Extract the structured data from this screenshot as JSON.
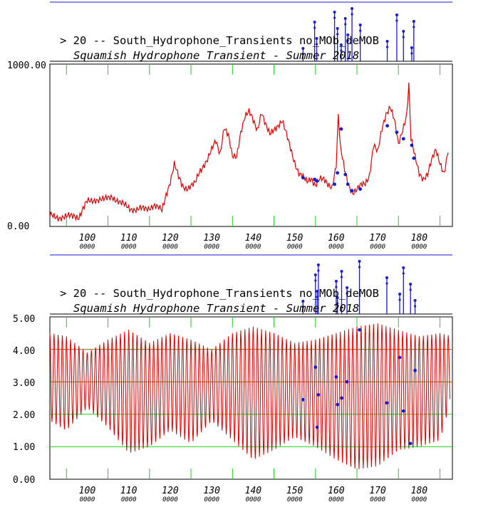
{
  "colors": {
    "axis": "#000000",
    "series": "#e00000",
    "events": "#1a1ad0",
    "grid": "#22cc22",
    "gridMajor": "#7a7a00"
  },
  "chart_data": [
    {
      "type": "line",
      "title": "> 20 -- South_Hydrophone_Transients no_MOb_deMOB",
      "subtitle": "Squamish Hydrophone Transient - Summer 2018",
      "xlim": [
        91,
        188
      ],
      "ylim": [
        0,
        1000
      ],
      "y_tick_labels": [
        "1000.00",
        "0.00"
      ],
      "x_tick_labels": [
        "100",
        "110",
        "120",
        "130",
        "140",
        "150",
        "160",
        "170",
        "180"
      ],
      "x_tick_sublabel": "0000",
      "series": [
        {
          "x": [
            91,
            93,
            95,
            97,
            98,
            100,
            102,
            104,
            106,
            108,
            110,
            112,
            114,
            116,
            118,
            119,
            120,
            121,
            122,
            123,
            124,
            126,
            127,
            128,
            129,
            130,
            131,
            132,
            133,
            134,
            135,
            136,
            137,
            138,
            139,
            140,
            141,
            142,
            143,
            144,
            145,
            146,
            147,
            148,
            149,
            150,
            151,
            152,
            153,
            154,
            155,
            156,
            157,
            158,
            159,
            160,
            160.5,
            161,
            162,
            163,
            164,
            165,
            166,
            167,
            168,
            169,
            170,
            171,
            172,
            173,
            174,
            175,
            176,
            177,
            177.5,
            178,
            179,
            180,
            181,
            182,
            183,
            184,
            185,
            186,
            187
          ],
          "y": [
            65,
            60,
            55,
            70,
            60,
            150,
            170,
            160,
            190,
            140,
            120,
            100,
            110,
            130,
            95,
            200,
            280,
            380,
            300,
            250,
            240,
            260,
            330,
            380,
            420,
            470,
            520,
            450,
            620,
            560,
            420,
            430,
            590,
            680,
            700,
            650,
            600,
            710,
            620,
            560,
            600,
            630,
            650,
            560,
            480,
            400,
            330,
            300,
            270,
            300,
            260,
            290,
            280,
            260,
            250,
            380,
            680,
            480,
            350,
            260,
            210,
            220,
            250,
            270,
            320,
            500,
            450,
            600,
            700,
            740,
            650,
            500,
            600,
            700,
            880,
            540,
            420,
            330,
            300,
            320,
            400,
            470,
            400,
            330,
            460
          ]
        }
      ],
      "events": [
        {
          "x": 152.0,
          "y": 300
        },
        {
          "x": 154.8,
          "y": 290
        },
        {
          "x": 155.3,
          "y": 280
        },
        {
          "x": 159.6,
          "y": 260
        },
        {
          "x": 160.3,
          "y": 330
        },
        {
          "x": 161.2,
          "y": 600
        },
        {
          "x": 162.2,
          "y": 320
        },
        {
          "x": 162.8,
          "y": 260
        },
        {
          "x": 163.8,
          "y": 220
        },
        {
          "x": 165.8,
          "y": 230
        },
        {
          "x": 172.3,
          "y": 620
        },
        {
          "x": 174.6,
          "y": 580
        },
        {
          "x": 176.2,
          "y": 540
        },
        {
          "x": 178.2,
          "y": 500
        },
        {
          "x": 178.7,
          "y": 420
        }
      ]
    },
    {
      "type": "line",
      "title": "> 20 -- South_Hydrophone_Transients no_MOb_deMOB",
      "subtitle": "Squamish Hydrophone Transient - Summer 2018",
      "xlim": [
        91,
        188
      ],
      "ylim": [
        0,
        5
      ],
      "y_tick_labels": [
        "5.00",
        "4.00",
        "3.00",
        "2.00",
        "1.00",
        "0.00"
      ],
      "x_tick_labels": [
        "100",
        "110",
        "120",
        "130",
        "140",
        "150",
        "160",
        "170",
        "180"
      ],
      "x_tick_sublabel": "0000",
      "grid": true,
      "series": [
        {
          "description_period_days": 1,
          "x": [
            91,
            95,
            100,
            105,
            110,
            115,
            120,
            125,
            130,
            135,
            140,
            145,
            150,
            155,
            160,
            165,
            170,
            175,
            180,
            185,
            188
          ],
          "y_high": [
            4.5,
            4.4,
            3.9,
            4.3,
            4.6,
            4.2,
            4.5,
            4.3,
            4.0,
            4.5,
            4.7,
            4.5,
            4.2,
            4.3,
            4.5,
            4.7,
            4.8,
            4.6,
            4.4,
            4.5,
            4.4
          ],
          "y_low": [
            1.8,
            1.5,
            2.2,
            1.6,
            0.8,
            1.0,
            1.5,
            1.1,
            1.8,
            1.2,
            0.6,
            0.9,
            1.3,
            1.0,
            0.6,
            0.3,
            0.4,
            0.9,
            1.0,
            1.2,
            2.6
          ]
        }
      ],
      "events": [
        {
          "x": 152.0,
          "y": 2.45
        },
        {
          "x": 155.0,
          "y": 3.45
        },
        {
          "x": 155.4,
          "y": 1.6
        },
        {
          "x": 155.7,
          "y": 2.6
        },
        {
          "x": 160.0,
          "y": 3.15
        },
        {
          "x": 160.3,
          "y": 2.3
        },
        {
          "x": 161.3,
          "y": 2.5
        },
        {
          "x": 162.6,
          "y": 3.0
        },
        {
          "x": 165.6,
          "y": 4.6
        },
        {
          "x": 172.2,
          "y": 2.35
        },
        {
          "x": 175.3,
          "y": 3.75
        },
        {
          "x": 176.2,
          "y": 2.1
        },
        {
          "x": 177.9,
          "y": 1.1
        },
        {
          "x": 179.0,
          "y": 3.35
        }
      ]
    }
  ]
}
